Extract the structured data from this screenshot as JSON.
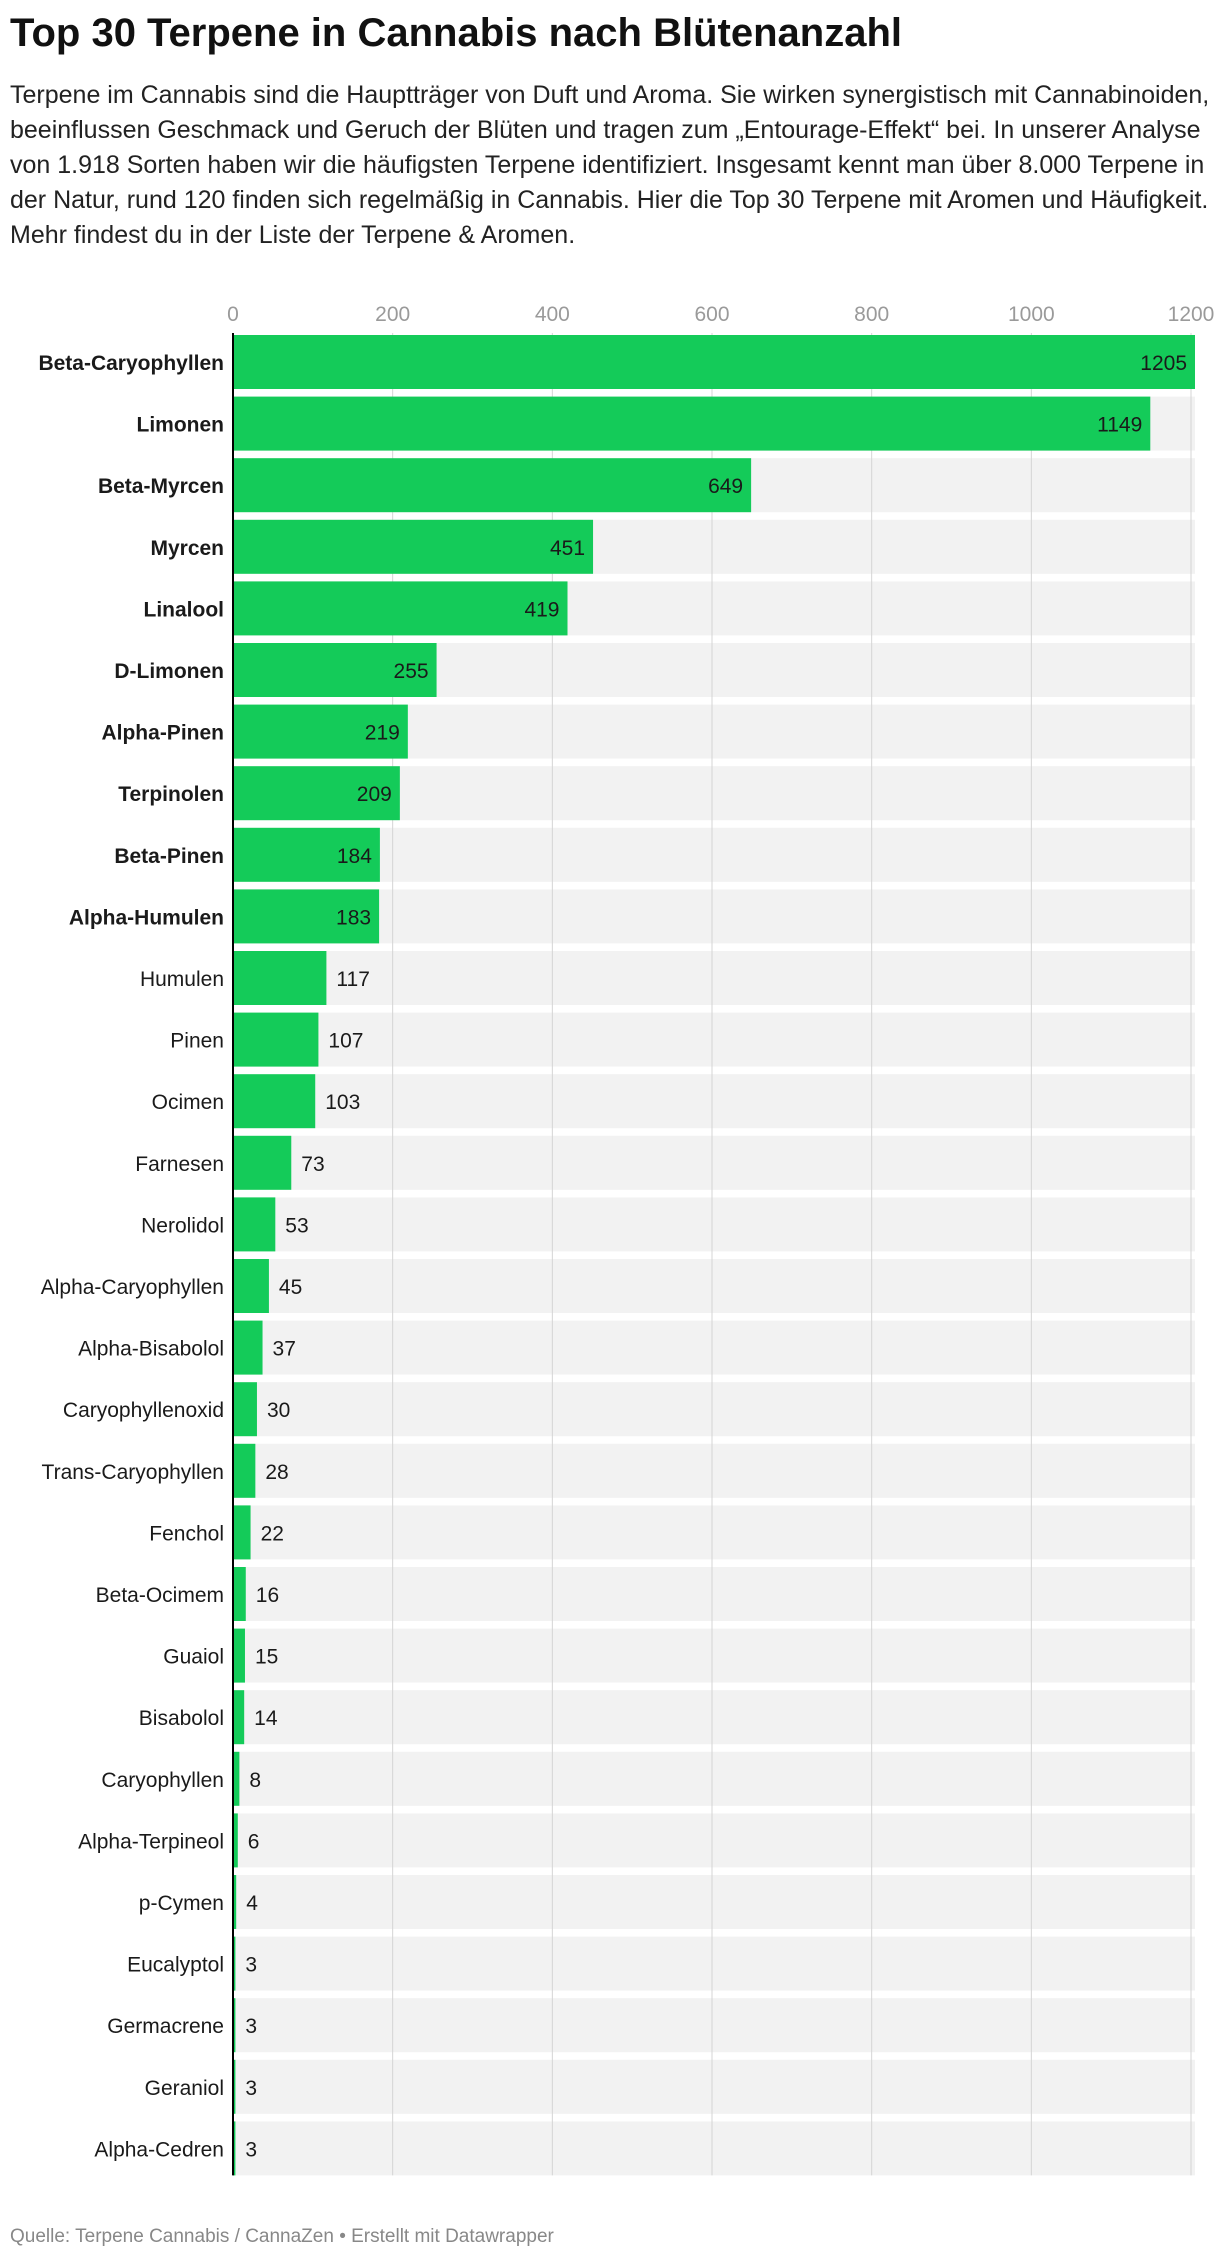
{
  "title": "Top 30 Terpene in Cannabis nach Blütenanzahl",
  "description": "Terpene im Cannabis sind die Hauptträger von Duft und Aroma. Sie wirken synergistisch mit Cannabinoiden, beeinflussen Geschmack und Geruch der Blüten und tragen zum „Entourage-Effekt“ bei. In unserer Analyse von 1.918 Sorten haben wir die häufigsten Terpene identifiziert. Insgesamt kennt man über 8.000 Terpene in der Natur, rund 120 finden sich regelmäßig in Cannabis. Hier die Top 30 Terpene mit Aromen und Häufigkeit. Mehr findest du in der Liste der Terpene & Aromen.",
  "source": "Quelle: Terpene Cannabis / CannaZen • Erstellt mit Datawrapper",
  "colors": {
    "bar": "#14cb59",
    "track": "#f2f2f2",
    "grid": "#d4d4d4",
    "axis": "#000000"
  },
  "chart_data": {
    "type": "bar",
    "orientation": "horizontal",
    "xlim": [
      0,
      1205
    ],
    "xticks": [
      0,
      200,
      400,
      600,
      800,
      1000,
      1200
    ],
    "grid": true,
    "bold_top": 10,
    "categories": [
      "Beta-Caryophyllen",
      "Limonen",
      "Beta-Myrcen",
      "Myrcen",
      "Linalool",
      "D-Limonen",
      "Alpha-Pinen",
      "Terpinolen",
      "Beta-Pinen",
      "Alpha-Humulen",
      "Humulen",
      "Pinen",
      "Ocimen",
      "Farnesen",
      "Nerolidol",
      "Alpha-Caryophyllen",
      "Alpha-Bisabolol",
      "Caryophyllenoxid",
      "Trans-Caryophyllen",
      "Fenchol",
      "Beta-Ocimem",
      "Guaiol",
      "Bisabolol",
      "Caryophyllen",
      "Alpha-Terpineol",
      "p-Cymen",
      "Eucalyptol",
      "Germacrene",
      "Geraniol",
      "Alpha-Cedren"
    ],
    "values": [
      1205,
      1149,
      649,
      451,
      419,
      255,
      219,
      209,
      184,
      183,
      117,
      107,
      103,
      73,
      53,
      45,
      37,
      30,
      28,
      22,
      16,
      15,
      14,
      8,
      6,
      4,
      3,
      3,
      3,
      3
    ]
  }
}
